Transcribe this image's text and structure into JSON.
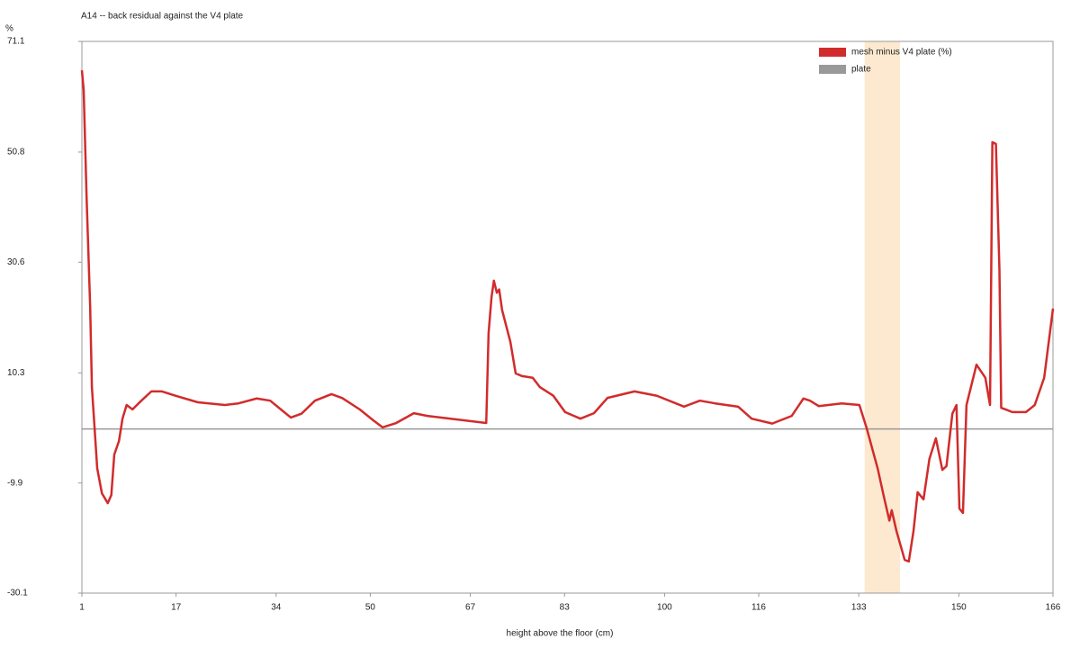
{
  "chart_data": {
    "type": "line",
    "title": "A14 -- back residual against the V4 plate",
    "y_unit": "%",
    "x_label": "height above the floor (cm)",
    "xlim": [
      1,
      166
    ],
    "xticks": [
      1,
      17,
      34,
      50,
      67,
      83,
      100,
      116,
      133,
      150,
      166
    ],
    "ylim": [
      -30.1,
      71.1
    ],
    "yticks": [
      71.1,
      50.8,
      30.6,
      10.3,
      -9.9,
      -30.1
    ],
    "legend": "top-right",
    "shaded_xrange": [
      134,
      140
    ],
    "shade_color": "#fde9d0",
    "reference_line": {
      "name": "plate",
      "y": 0,
      "color": "#999999"
    },
    "x": [
      1,
      1.3,
      1.8,
      2.4,
      2.7,
      3.1,
      3.6,
      4.4,
      5.4,
      6.0,
      6.5,
      7.3,
      7.9,
      8.6,
      9.6,
      11.1,
      12.8,
      14.6,
      16.9,
      20.7,
      25.3,
      27.6,
      30.7,
      33.0,
      34.8,
      36.5,
      38.3,
      40.6,
      43.4,
      45.2,
      48.2,
      50.5,
      52.1,
      54.4,
      57.4,
      59.7,
      63.5,
      69.7,
      70.1,
      70.6,
      71.0,
      71.5,
      71.9,
      72.4,
      73.8,
      74.7,
      75.8,
      77.6,
      78.8,
      81.1,
      83.1,
      85.7,
      88.0,
      90.3,
      94.9,
      98.7,
      103.3,
      106.0,
      108.6,
      112.5,
      114.8,
      118.3,
      121.6,
      123.6,
      124.7,
      126.2,
      130.1,
      133.1,
      134.3,
      136.2,
      137.2,
      138.2,
      138.6,
      139.4,
      140.8,
      141.5,
      142.3,
      143.0,
      144.0,
      145.0,
      146.1,
      147.2,
      147.9,
      148.9,
      149.6,
      150.1,
      150.7,
      151.3,
      153.0,
      154.5,
      155.3,
      155.7,
      156.3,
      156.9,
      157.2,
      159.1,
      161.4,
      162.9,
      164.5,
      166
    ],
    "series": [
      {
        "name": "mesh minus V4 plate (%)",
        "color": "#d22b2b",
        "values": [
          65.8,
          62.2,
          42.4,
          22.6,
          7.7,
          1.1,
          -7.2,
          -11.8,
          -13.6,
          -12.1,
          -4.7,
          -2.2,
          1.9,
          4.4,
          3.6,
          5.2,
          6.9,
          6.9,
          6.1,
          4.9,
          4.4,
          4.7,
          5.6,
          5.2,
          3.6,
          2.1,
          2.8,
          5.2,
          6.4,
          5.7,
          3.6,
          1.6,
          0.3,
          1.1,
          2.9,
          2.4,
          1.9,
          1.1,
          17.6,
          24.2,
          27.2,
          25.0,
          25.6,
          21.8,
          16.0,
          10.2,
          9.7,
          9.4,
          7.7,
          6.1,
          3.1,
          1.9,
          2.9,
          5.7,
          6.9,
          6.1,
          4.1,
          5.2,
          4.7,
          4.1,
          1.9,
          1.0,
          2.4,
          5.6,
          5.2,
          4.2,
          4.7,
          4.4,
          0.3,
          -7.2,
          -12.1,
          -16.8,
          -14.9,
          -18.7,
          -24.0,
          -24.3,
          -18.7,
          -11.6,
          -12.9,
          -5.5,
          -1.7,
          -7.5,
          -6.8,
          2.8,
          4.4,
          -14.6,
          -15.4,
          4.4,
          11.8,
          9.4,
          4.4,
          52.6,
          52.3,
          29.2,
          3.9,
          3.1,
          3.1,
          4.4,
          9.4,
          22.1
        ]
      }
    ]
  }
}
